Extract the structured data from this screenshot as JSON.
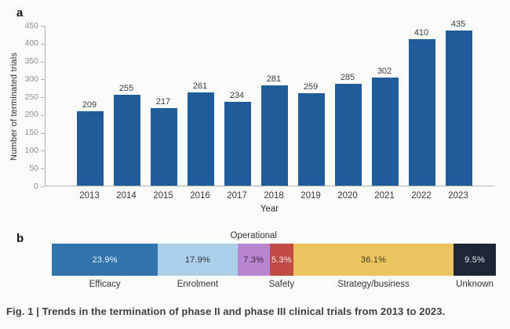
{
  "figure": {
    "panel_a_label": "a",
    "panel_b_label": "b",
    "caption": "Fig. 1 | Trends in the termination of phase II and phase III clinical trials from 2013 to 2023."
  },
  "chart_data": [
    {
      "type": "bar",
      "panel": "a",
      "xlabel": "Year",
      "ylabel": "Number of terminated trials",
      "categories": [
        "2013",
        "2014",
        "2015",
        "2016",
        "2017",
        "2018",
        "2019",
        "2020",
        "2021",
        "2022",
        "2023"
      ],
      "values": [
        209,
        255,
        217,
        261,
        234,
        281,
        259,
        285,
        302,
        410,
        435
      ],
      "ylim": [
        0,
        450
      ],
      "ytick_step": 50,
      "bar_color": "#1f5c99",
      "grid": false,
      "legend": "none",
      "value_labels": [
        "209",
        "255",
        "217",
        "261",
        "234",
        "281",
        "259",
        "285",
        "302",
        "410",
        "435"
      ]
    },
    {
      "type": "stacked-bar-horizontal",
      "panel": "b",
      "above_label": "Operational",
      "segments": [
        {
          "label": "Efficacy",
          "value_pct": 23.9,
          "display": "23.9%",
          "color": "#3173ad",
          "text_color": "#eef4fa",
          "label_position": "below"
        },
        {
          "label": "Enrolment",
          "value_pct": 17.9,
          "display": "17.9%",
          "color": "#abcfe9",
          "text_color": "#30313f",
          "label_position": "below"
        },
        {
          "label": "Operational",
          "value_pct": 7.3,
          "display": "7.3%",
          "color": "#b886ce",
          "text_color": "#372640",
          "label_position": "above"
        },
        {
          "label": "Safety",
          "value_pct": 5.3,
          "display": "5.3%",
          "color": "#c14a44",
          "text_color": "#f8ece9",
          "label_position": "below"
        },
        {
          "label": "Strategy/business",
          "value_pct": 36.1,
          "display": "36.1%",
          "color": "#eac45f",
          "text_color": "#3e3520",
          "label_position": "below"
        },
        {
          "label": "Unknown",
          "value_pct": 9.5,
          "display": "9.5%",
          "color": "#1c2636",
          "text_color": "#e2e6ec",
          "label_position": "below"
        }
      ]
    }
  ]
}
